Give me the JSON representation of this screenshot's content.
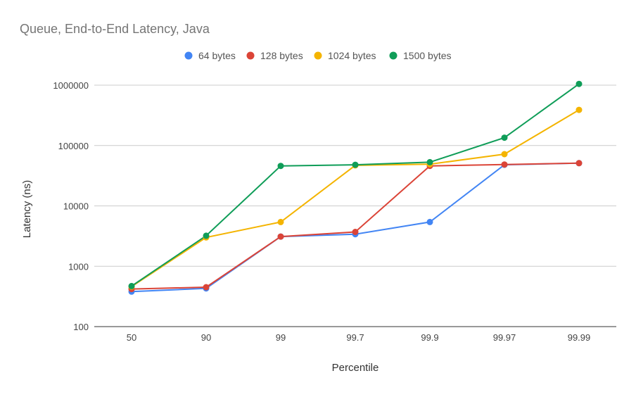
{
  "chart_data": {
    "type": "line",
    "title": "Queue, End-to-End Latency, Java",
    "xlabel": "Percentile",
    "ylabel": "Latency (ns)",
    "y_scale": "log",
    "ylim": [
      100,
      1000000
    ],
    "y_ticks": [
      "100",
      "1000",
      "10000",
      "100000",
      "1000000"
    ],
    "categories": [
      "50",
      "90",
      "99",
      "99.7",
      "99.9",
      "99.97",
      "99.99"
    ],
    "legend_position": "top",
    "grid": true,
    "series": [
      {
        "name": "64 bytes",
        "color": "#4285f4",
        "values": [
          380,
          430,
          3100,
          3400,
          5400,
          48000,
          51000
        ]
      },
      {
        "name": "128 bytes",
        "color": "#db4437",
        "values": [
          420,
          450,
          3100,
          3700,
          46000,
          48500,
          51000
        ]
      },
      {
        "name": "1024 bytes",
        "color": "#f4b400",
        "values": [
          460,
          3000,
          5400,
          47000,
          49000,
          72000,
          390000
        ]
      },
      {
        "name": "1500 bytes",
        "color": "#0f9d58",
        "values": [
          470,
          3200,
          46000,
          48000,
          53000,
          135000,
          1050000
        ]
      }
    ]
  }
}
